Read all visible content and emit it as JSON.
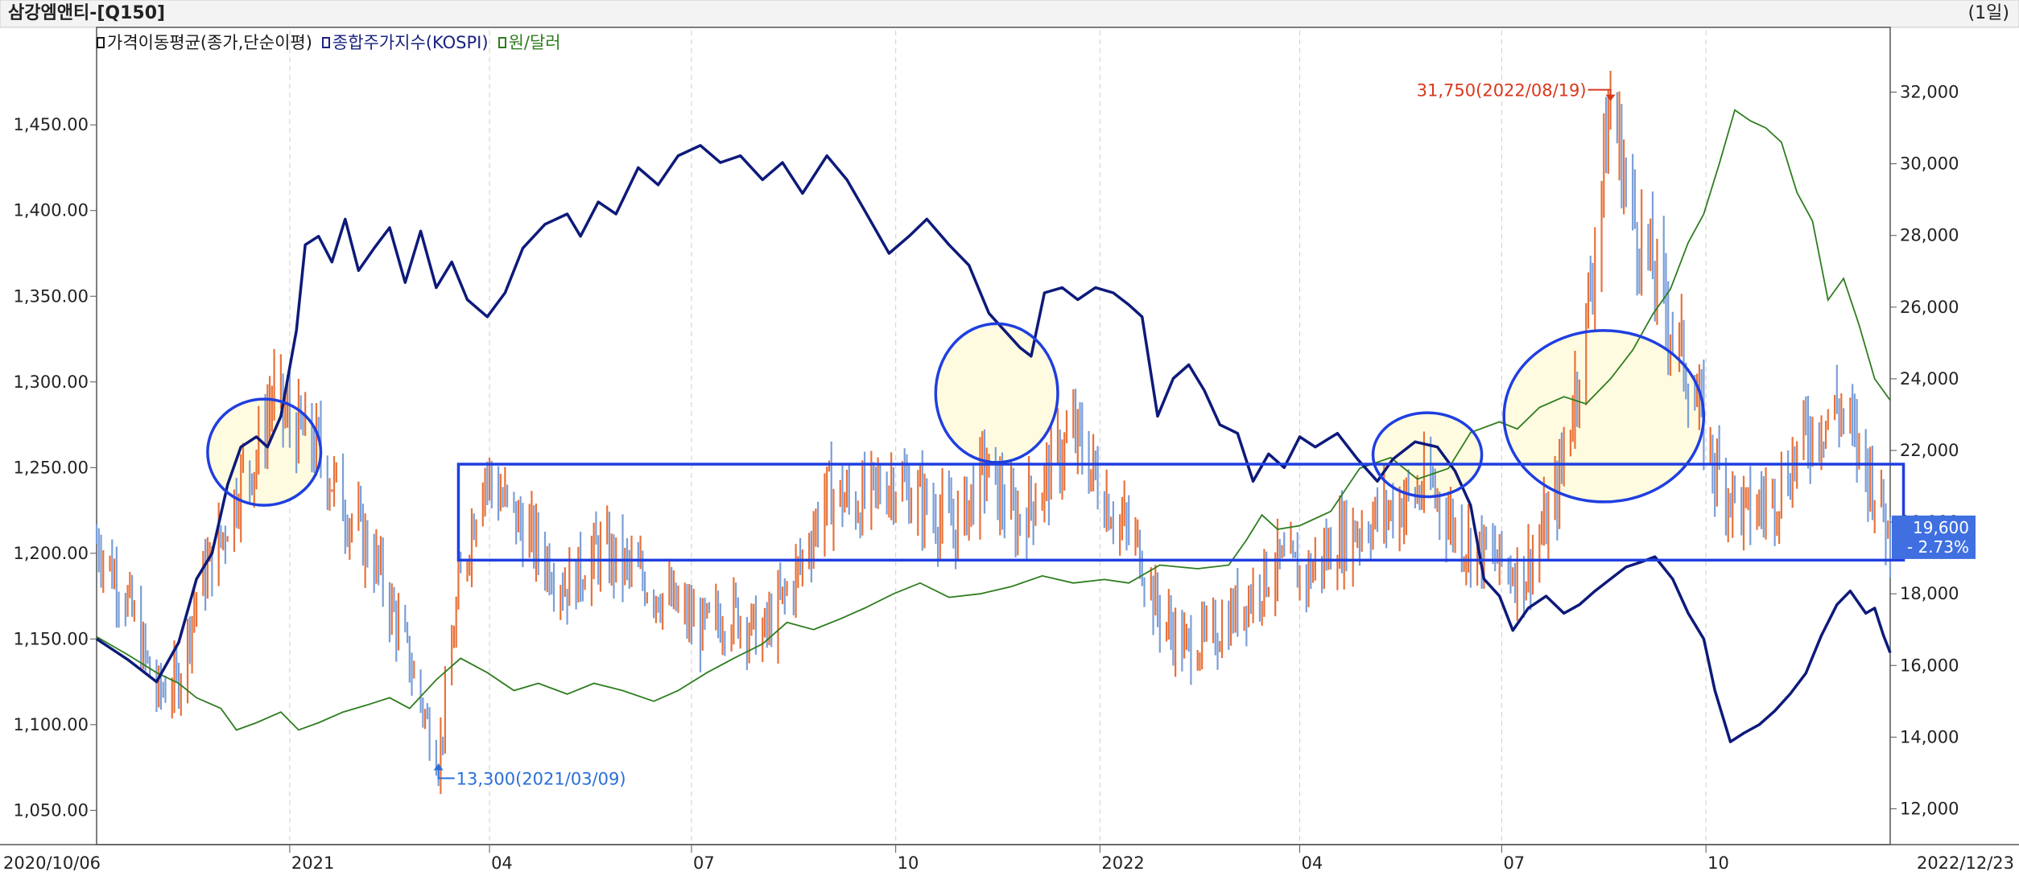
{
  "header": {
    "title": "삼강엠앤티-[Q150]",
    "interval": "(1일)"
  },
  "legend": [
    {
      "label": "가격이동평균(종가,단순이평)",
      "color": "#1a1a1a"
    },
    {
      "label": "종합주가지수(KOSPI)",
      "color": "#1a237e"
    },
    {
      "label": "원/달러",
      "color": "#2e7d1f"
    }
  ],
  "colors": {
    "up": "#e8723a",
    "down": "#7b9ed8",
    "kospi": "#0d1a7a",
    "fx": "#2e7d1f",
    "highlight": "#fffbe0",
    "shape": "#1f3fe0",
    "annotation_high": "#d9381e",
    "annotation_low": "#2a6fd8",
    "price_tag_bg": "#3f6fe0"
  },
  "chart_data": {
    "type": "line",
    "x_axis": {
      "start": "2020/10/06",
      "end": "2022/12/23",
      "tick_labels": [
        "2021",
        "04",
        "07",
        "10",
        "2022",
        "04",
        "07",
        "10"
      ]
    },
    "left_axis": {
      "range": [
        1030,
        1490
      ],
      "ticks": [
        "1,050.00",
        "1,100.00",
        "1,150.00",
        "1,200.00",
        "1,250.00",
        "1,300.00",
        "1,350.00",
        "1,400.00",
        "1,450.00"
      ]
    },
    "right_axis": {
      "range": [
        11000,
        33000
      ],
      "ticks": [
        "12,000",
        "14,000",
        "16,000",
        "18,000",
        "20,000",
        "22,000",
        "24,000",
        "26,000",
        "28,000",
        "30,000",
        "32,000"
      ]
    },
    "series": [
      {
        "name": "종합주가지수(KOSPI)",
        "axis": "left",
        "points": [
          [
            "2020-10-06",
            1150
          ],
          [
            "2020-10-20",
            1138
          ],
          [
            "2020-11-02",
            1125
          ],
          [
            "2020-11-12",
            1148
          ],
          [
            "2020-11-20",
            1185
          ],
          [
            "2020-11-27",
            1200
          ],
          [
            "2020-12-04",
            1240
          ],
          [
            "2020-12-10",
            1262
          ],
          [
            "2020-12-17",
            1268
          ],
          [
            "2020-12-22",
            1262
          ],
          [
            "2020-12-28",
            1280
          ],
          [
            "2021-01-04",
            1330
          ],
          [
            "2021-01-08",
            1380
          ],
          [
            "2021-01-14",
            1385
          ],
          [
            "2021-01-20",
            1370
          ],
          [
            "2021-01-26",
            1395
          ],
          [
            "2021-02-01",
            1365
          ],
          [
            "2021-02-08",
            1378
          ],
          [
            "2021-02-15",
            1390
          ],
          [
            "2021-02-22",
            1358
          ],
          [
            "2021-03-01",
            1388
          ],
          [
            "2021-03-08",
            1355
          ],
          [
            "2021-03-15",
            1370
          ],
          [
            "2021-03-22",
            1348
          ],
          [
            "2021-03-31",
            1338
          ],
          [
            "2021-04-08",
            1352
          ],
          [
            "2021-04-16",
            1378
          ],
          [
            "2021-04-26",
            1392
          ],
          [
            "2021-05-06",
            1398
          ],
          [
            "2021-05-12",
            1385
          ],
          [
            "2021-05-20",
            1405
          ],
          [
            "2021-05-28",
            1398
          ],
          [
            "2021-06-07",
            1425
          ],
          [
            "2021-06-16",
            1415
          ],
          [
            "2021-06-25",
            1432
          ],
          [
            "2021-07-05",
            1438
          ],
          [
            "2021-07-14",
            1428
          ],
          [
            "2021-07-23",
            1432
          ],
          [
            "2021-08-02",
            1418
          ],
          [
            "2021-08-11",
            1428
          ],
          [
            "2021-08-20",
            1410
          ],
          [
            "2021-08-31",
            1432
          ],
          [
            "2021-09-09",
            1418
          ],
          [
            "2021-09-17",
            1400
          ],
          [
            "2021-09-28",
            1375
          ],
          [
            "2021-10-07",
            1385
          ],
          [
            "2021-10-15",
            1395
          ],
          [
            "2021-10-25",
            1380
          ],
          [
            "2021-11-03",
            1368
          ],
          [
            "2021-11-12",
            1340
          ],
          [
            "2021-11-19",
            1330
          ],
          [
            "2021-11-26",
            1320
          ],
          [
            "2021-12-01",
            1315
          ],
          [
            "2021-12-07",
            1352
          ],
          [
            "2021-12-15",
            1355
          ],
          [
            "2021-12-22",
            1348
          ],
          [
            "2021-12-30",
            1355
          ],
          [
            "2022-01-07",
            1352
          ],
          [
            "2022-01-14",
            1345
          ],
          [
            "2022-01-20",
            1338
          ],
          [
            "2022-01-27",
            1280
          ],
          [
            "2022-02-03",
            1302
          ],
          [
            "2022-02-10",
            1310
          ],
          [
            "2022-02-17",
            1295
          ],
          [
            "2022-02-24",
            1275
          ],
          [
            "2022-03-04",
            1270
          ],
          [
            "2022-03-11",
            1242
          ],
          [
            "2022-03-18",
            1258
          ],
          [
            "2022-03-25",
            1250
          ],
          [
            "2022-04-01",
            1268
          ],
          [
            "2022-04-08",
            1262
          ],
          [
            "2022-04-18",
            1270
          ],
          [
            "2022-04-27",
            1255
          ],
          [
            "2022-05-06",
            1242
          ],
          [
            "2022-05-13",
            1255
          ],
          [
            "2022-05-23",
            1265
          ],
          [
            "2022-06-02",
            1262
          ],
          [
            "2022-06-10",
            1248
          ],
          [
            "2022-06-17",
            1228
          ],
          [
            "2022-06-23",
            1185
          ],
          [
            "2022-06-30",
            1175
          ],
          [
            "2022-07-06",
            1155
          ],
          [
            "2022-07-13",
            1168
          ],
          [
            "2022-07-21",
            1175
          ],
          [
            "2022-07-29",
            1165
          ],
          [
            "2022-08-05",
            1170
          ],
          [
            "2022-08-12",
            1178
          ],
          [
            "2022-08-19",
            1185
          ],
          [
            "2022-08-26",
            1192
          ],
          [
            "2022-09-02",
            1195
          ],
          [
            "2022-09-08",
            1198
          ],
          [
            "2022-09-16",
            1185
          ],
          [
            "2022-09-23",
            1165
          ],
          [
            "2022-09-30",
            1150
          ],
          [
            "2022-10-05",
            1120
          ],
          [
            "2022-10-12",
            1090
          ],
          [
            "2022-10-18",
            1095
          ],
          [
            "2022-10-25",
            1100
          ],
          [
            "2022-11-01",
            1108
          ],
          [
            "2022-11-08",
            1118
          ],
          [
            "2022-11-15",
            1130
          ],
          [
            "2022-11-22",
            1152
          ],
          [
            "2022-11-29",
            1170
          ],
          [
            "2022-12-05",
            1178
          ],
          [
            "2022-12-12",
            1165
          ],
          [
            "2022-12-16",
            1168
          ],
          [
            "2022-12-20",
            1152
          ],
          [
            "2022-12-23",
            1142
          ]
        ]
      },
      {
        "name": "원/달러",
        "axis": "right",
        "points": [
          [
            "2020-10-06",
            16800
          ],
          [
            "2020-10-20",
            16300
          ],
          [
            "2020-11-02",
            15800
          ],
          [
            "2020-11-12",
            15500
          ],
          [
            "2020-11-20",
            15100
          ],
          [
            "2020-12-01",
            14800
          ],
          [
            "2020-12-08",
            14200
          ],
          [
            "2020-12-17",
            14400
          ],
          [
            "2020-12-28",
            14700
          ],
          [
            "2021-01-05",
            14200
          ],
          [
            "2021-01-14",
            14400
          ],
          [
            "2021-01-25",
            14700
          ],
          [
            "2021-02-05",
            14900
          ],
          [
            "2021-02-15",
            15100
          ],
          [
            "2021-02-24",
            14800
          ],
          [
            "2021-03-08",
            15600
          ],
          [
            "2021-03-19",
            16200
          ],
          [
            "2021-03-31",
            15800
          ],
          [
            "2021-04-12",
            15300
          ],
          [
            "2021-04-23",
            15500
          ],
          [
            "2021-05-06",
            15200
          ],
          [
            "2021-05-18",
            15500
          ],
          [
            "2021-05-31",
            15300
          ],
          [
            "2021-06-14",
            15000
          ],
          [
            "2021-06-25",
            15300
          ],
          [
            "2021-07-08",
            15800
          ],
          [
            "2021-07-20",
            16200
          ],
          [
            "2021-08-02",
            16600
          ],
          [
            "2021-08-13",
            17200
          ],
          [
            "2021-08-25",
            17000
          ],
          [
            "2021-09-06",
            17300
          ],
          [
            "2021-09-17",
            17600
          ],
          [
            "2021-09-30",
            18000
          ],
          [
            "2021-10-12",
            18300
          ],
          [
            "2021-10-25",
            17900
          ],
          [
            "2021-11-08",
            18000
          ],
          [
            "2021-11-22",
            18200
          ],
          [
            "2021-12-06",
            18500
          ],
          [
            "2021-12-20",
            18300
          ],
          [
            "2022-01-03",
            18400
          ],
          [
            "2022-01-14",
            18300
          ],
          [
            "2022-01-28",
            18800
          ],
          [
            "2022-02-14",
            18700
          ],
          [
            "2022-02-28",
            18800
          ],
          [
            "2022-03-08",
            19500
          ],
          [
            "2022-03-15",
            20200
          ],
          [
            "2022-03-22",
            19800
          ],
          [
            "2022-04-01",
            19900
          ],
          [
            "2022-04-15",
            20300
          ],
          [
            "2022-04-28",
            21500
          ],
          [
            "2022-05-12",
            21800
          ],
          [
            "2022-05-24",
            21200
          ],
          [
            "2022-06-07",
            21500
          ],
          [
            "2022-06-17",
            22500
          ],
          [
            "2022-06-30",
            22800
          ],
          [
            "2022-07-08",
            22600
          ],
          [
            "2022-07-18",
            23200
          ],
          [
            "2022-07-29",
            23500
          ],
          [
            "2022-08-08",
            23300
          ],
          [
            "2022-08-19",
            24000
          ],
          [
            "2022-08-29",
            24800
          ],
          [
            "2022-09-07",
            25800
          ],
          [
            "2022-09-15",
            26500
          ],
          [
            "2022-09-23",
            27800
          ],
          [
            "2022-09-30",
            28600
          ],
          [
            "2022-10-07",
            30000
          ],
          [
            "2022-10-14",
            31500
          ],
          [
            "2022-10-21",
            31200
          ],
          [
            "2022-10-28",
            31000
          ],
          [
            "2022-11-04",
            30600
          ],
          [
            "2022-11-11",
            29200
          ],
          [
            "2022-11-18",
            28400
          ],
          [
            "2022-11-25",
            26200
          ],
          [
            "2022-12-02",
            26800
          ],
          [
            "2022-12-09",
            25500
          ],
          [
            "2022-12-16",
            24000
          ],
          [
            "2022-12-23",
            23400
          ]
        ]
      },
      {
        "name": "삼강엠앤티",
        "axis": "right",
        "type": "bar",
        "points": [
          [
            "2020-10-06",
            19500
          ],
          [
            "2020-10-20",
            17800
          ],
          [
            "2020-11-02",
            15200
          ],
          [
            "2020-11-12",
            15600
          ],
          [
            "2020-11-20",
            18000
          ],
          [
            "2020-12-01",
            19500
          ],
          [
            "2020-12-10",
            21200
          ],
          [
            "2020-12-17",
            21800
          ],
          [
            "2020-12-24",
            23500
          ],
          [
            "2021-01-05",
            22500
          ],
          [
            "2021-01-14",
            22000
          ],
          [
            "2021-01-25",
            20500
          ],
          [
            "2021-02-08",
            19000
          ],
          [
            "2021-02-22",
            16500
          ],
          [
            "2021-03-09",
            13300
          ],
          [
            "2021-03-18",
            18000
          ],
          [
            "2021-03-29",
            21500
          ],
          [
            "2021-04-08",
            20500
          ],
          [
            "2021-04-20",
            19500
          ],
          [
            "2021-05-06",
            18200
          ],
          [
            "2021-05-20",
            19200
          ],
          [
            "2021-06-07",
            18500
          ],
          [
            "2021-06-21",
            17800
          ],
          [
            "2021-07-05",
            17000
          ],
          [
            "2021-07-20",
            17500
          ],
          [
            "2021-08-02",
            16800
          ],
          [
            "2021-08-17",
            18500
          ],
          [
            "2021-08-31",
            20800
          ],
          [
            "2021-09-14",
            20500
          ],
          [
            "2021-09-30",
            21200
          ],
          [
            "2021-10-14",
            20500
          ],
          [
            "2021-10-28",
            19800
          ],
          [
            "2021-11-10",
            21500
          ],
          [
            "2021-11-24",
            20000
          ],
          [
            "2021-12-06",
            21000
          ],
          [
            "2021-12-20",
            22500
          ],
          [
            "2022-01-05",
            20500
          ],
          [
            "2022-01-19",
            19200
          ],
          [
            "2022-01-27",
            17500
          ],
          [
            "2022-02-08",
            16500
          ],
          [
            "2022-02-21",
            16800
          ],
          [
            "2022-03-07",
            17800
          ],
          [
            "2022-03-21",
            18800
          ],
          [
            "2022-04-04",
            18500
          ],
          [
            "2022-04-18",
            19500
          ],
          [
            "2022-05-02",
            20000
          ],
          [
            "2022-05-16",
            20500
          ],
          [
            "2022-05-30",
            21000
          ],
          [
            "2022-06-13",
            19500
          ],
          [
            "2022-06-27",
            19000
          ],
          [
            "2022-07-11",
            18500
          ],
          [
            "2022-07-25",
            20500
          ],
          [
            "2022-08-08",
            25500
          ],
          [
            "2022-08-19",
            31750
          ],
          [
            "2022-08-29",
            28500
          ],
          [
            "2022-09-08",
            26800
          ],
          [
            "2022-09-21",
            24500
          ],
          [
            "2022-10-05",
            21500
          ],
          [
            "2022-10-19",
            20200
          ],
          [
            "2022-11-02",
            20800
          ],
          [
            "2022-11-16",
            22500
          ],
          [
            "2022-11-30",
            23200
          ],
          [
            "2022-12-09",
            22000
          ],
          [
            "2022-12-16",
            21000
          ],
          [
            "2022-12-23",
            19600
          ]
        ]
      }
    ],
    "annotations": [
      {
        "label": "31,750(2022/08/19)",
        "date": "2022-08-19",
        "value": 31750,
        "kind": "high"
      },
      {
        "label": "13,300(2021/03/09)",
        "date": "2021-03-09",
        "value": 13300,
        "kind": "low"
      }
    ],
    "price_tag": {
      "price": "19,600",
      "change": "- 2.73%"
    },
    "highlights": {
      "ellipses": [
        {
          "from": "2020-11-25",
          "to": "2021-01-15",
          "low": 1228,
          "high": 1290
        },
        {
          "from": "2021-10-19",
          "to": "2021-12-13",
          "low": 1253,
          "high": 1334
        },
        {
          "from": "2022-05-04",
          "to": "2022-06-22",
          "low": 1233,
          "high": 1282
        },
        {
          "from": "2022-07-02",
          "to": "2022-09-30",
          "low": 1230,
          "high": 1330
        }
      ],
      "band": {
        "from": "2021-03-18",
        "to": "2022-12-29",
        "low": 1196,
        "high": 1252
      }
    }
  }
}
